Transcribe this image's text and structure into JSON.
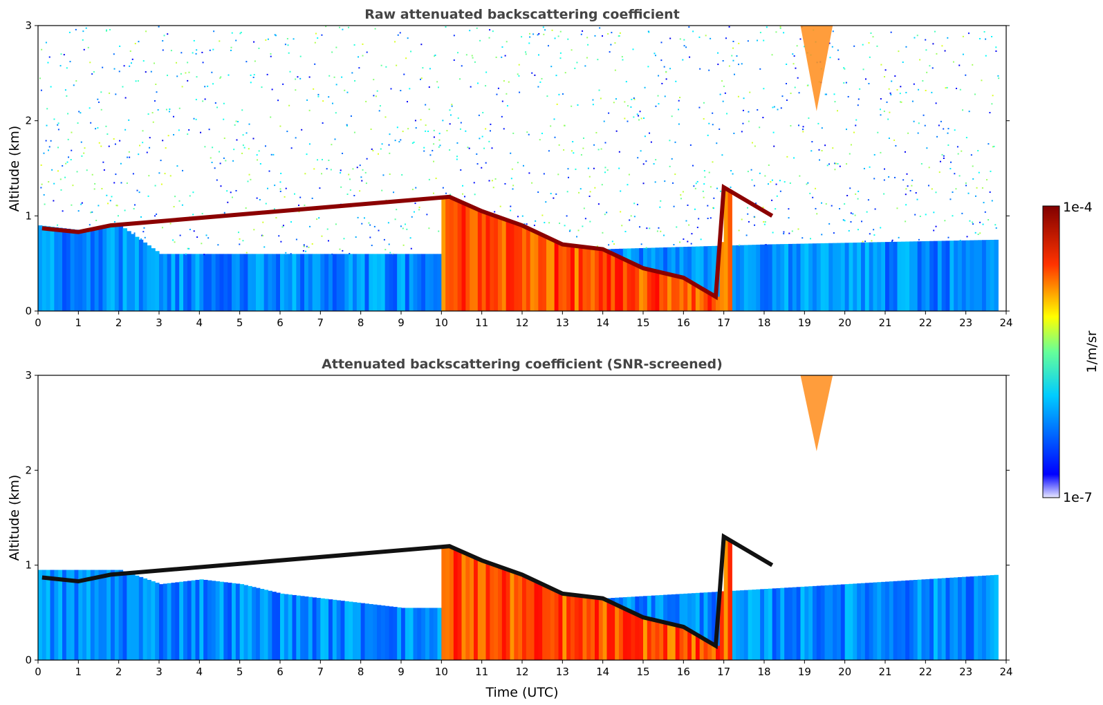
{
  "figure": {
    "colorbar": {
      "max_label": "1e-4",
      "min_label": "1e-7",
      "unit_label": "1/m/sr",
      "colormap": "jet",
      "scale": "log"
    }
  },
  "chart_data": [
    {
      "type": "heatmap",
      "title": "Raw attenuated backscattering coefficient",
      "xlabel": "",
      "ylabel": "Altitude (km)",
      "xlim": [
        0,
        24
      ],
      "ylim": [
        0,
        3
      ],
      "x_ticks": [
        "0",
        "1",
        "2",
        "3",
        "4",
        "5",
        "6",
        "7",
        "8",
        "9",
        "10",
        "11",
        "12",
        "13",
        "14",
        "15",
        "16",
        "17",
        "18",
        "19",
        "20",
        "21",
        "22",
        "23",
        "24"
      ],
      "y_ticks": [
        "0",
        "1",
        "2",
        "3"
      ],
      "variant": "raw",
      "features": {
        "boundary_layer_top_km": [
          [
            0,
            0.9
          ],
          [
            1,
            0.85
          ],
          [
            2,
            0.9
          ],
          [
            3,
            0.6
          ],
          [
            6,
            0.6
          ],
          [
            9,
            0.6
          ],
          [
            10,
            0.6
          ],
          [
            18,
            0.7
          ],
          [
            23.8,
            0.75
          ]
        ],
        "cloud_base_km": [
          [
            0.1,
            0.87
          ],
          [
            1.0,
            0.83
          ],
          [
            1.8,
            0.9
          ],
          [
            10.2,
            1.2
          ],
          [
            11,
            1.05
          ],
          [
            12,
            0.9
          ],
          [
            13,
            0.7
          ],
          [
            14,
            0.65
          ],
          [
            15,
            0.45
          ],
          [
            16,
            0.35
          ],
          [
            16.8,
            0.15
          ],
          [
            17,
            1.3
          ],
          [
            18.2,
            1.0
          ]
        ],
        "high_cloud": {
          "x_start": 18.9,
          "x_end": 19.7,
          "alt_top": 3.0,
          "alt_bottom": 2.1
        }
      }
    },
    {
      "type": "heatmap",
      "title": "Attenuated backscattering coefficient (SNR-screened)",
      "xlabel": "Time (UTC)",
      "ylabel": "Altitude (km)",
      "xlim": [
        0,
        24
      ],
      "ylim": [
        0,
        3
      ],
      "x_ticks": [
        "0",
        "1",
        "2",
        "3",
        "4",
        "5",
        "6",
        "7",
        "8",
        "9",
        "10",
        "11",
        "12",
        "13",
        "14",
        "15",
        "16",
        "17",
        "18",
        "19",
        "20",
        "21",
        "22",
        "23",
        "24"
      ],
      "y_ticks": [
        "0",
        "1",
        "2",
        "3"
      ],
      "variant": "screened",
      "features": {
        "boundary_layer_top_km": [
          [
            0,
            0.95
          ],
          [
            2,
            0.95
          ],
          [
            3,
            0.8
          ],
          [
            4,
            0.85
          ],
          [
            5,
            0.8
          ],
          [
            6,
            0.7
          ],
          [
            7,
            0.65
          ],
          [
            9,
            0.55
          ],
          [
            10,
            0.55
          ],
          [
            18,
            0.75
          ],
          [
            20,
            0.8
          ],
          [
            23.8,
            0.9
          ]
        ],
        "cloud_base_km": [
          [
            0.1,
            0.87
          ],
          [
            1.0,
            0.83
          ],
          [
            1.8,
            0.9
          ],
          [
            10.2,
            1.2
          ],
          [
            11,
            1.05
          ],
          [
            12,
            0.9
          ],
          [
            13,
            0.7
          ],
          [
            14,
            0.65
          ],
          [
            15,
            0.45
          ],
          [
            16,
            0.35
          ],
          [
            16.8,
            0.15
          ],
          [
            17,
            1.3
          ],
          [
            18.2,
            1.0
          ]
        ],
        "high_cloud": {
          "x_start": 18.9,
          "x_end": 19.7,
          "alt_top": 3.0,
          "alt_bottom": 2.2
        }
      }
    }
  ]
}
